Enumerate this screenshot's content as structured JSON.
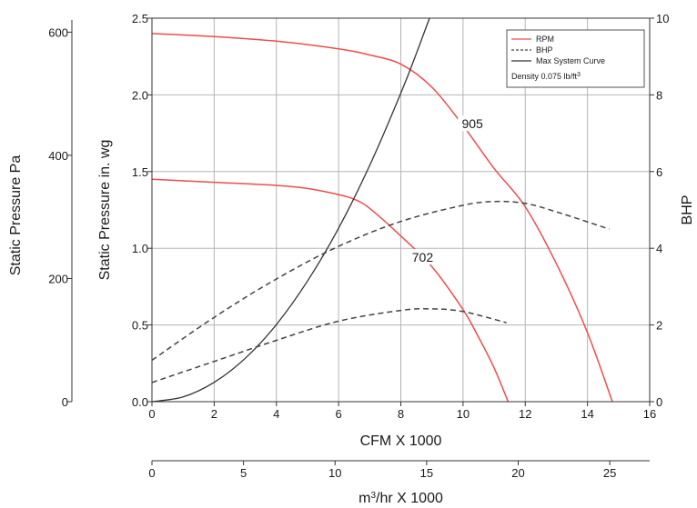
{
  "chart_data": {
    "type": "line",
    "title": "",
    "x_axis": {
      "label": "CFM X 1000",
      "range": [
        0,
        16
      ],
      "ticks": [
        "0",
        "2",
        "4",
        "6",
        "8",
        "10",
        "12",
        "14",
        "16"
      ]
    },
    "x2_axis": {
      "label": "m³/hr X 1000",
      "range": [
        0,
        27.18
      ],
      "ticks": [
        "0",
        "5",
        "10",
        "15",
        "20",
        "25"
      ]
    },
    "y_axis": {
      "label": "Static Pressure in. wg",
      "range": [
        0,
        2.5
      ],
      "ticks": [
        "0.0",
        "0.5",
        "1.0",
        "1.5",
        "2.0",
        "2.5"
      ]
    },
    "y_left_outer_axis": {
      "label": "Static Pressure Pa",
      "range": [
        0,
        622.7
      ],
      "ticks": [
        "0",
        "200",
        "400",
        "600"
      ]
    },
    "y_right_axis": {
      "label": "BHP",
      "range": [
        0,
        10
      ],
      "ticks": [
        "0",
        "2",
        "4",
        "6",
        "8",
        "10"
      ]
    },
    "grid": true,
    "legend": {
      "placement": "top-right",
      "entries": [
        {
          "label": "RPM",
          "style": "solid",
          "color": "#ef4c4c"
        },
        {
          "label": "BHP",
          "style": "dashed",
          "color": "#444444"
        },
        {
          "label": "Max System Curve",
          "style": "solid",
          "color": "#333333"
        }
      ],
      "note_prefix": "Density 0.075 lb/ft",
      "note_superscript": "3"
    },
    "series": [
      {
        "name": "905",
        "kind": "RPM",
        "axis": "y",
        "color": "#ef4c4c",
        "x": [
          0,
          2,
          4,
          6,
          7,
          8,
          9,
          10,
          11,
          12,
          13,
          14,
          14.8
        ],
        "y": [
          2.4,
          2.38,
          2.35,
          2.3,
          2.26,
          2.2,
          2.05,
          1.8,
          1.52,
          1.27,
          0.9,
          0.45,
          0
        ]
      },
      {
        "name": "702",
        "kind": "RPM",
        "axis": "y",
        "color": "#ef4c4c",
        "x": [
          0,
          2,
          4,
          5,
          6,
          6.5,
          7,
          8,
          9,
          10,
          10.5,
          11,
          11.45
        ],
        "y": [
          1.45,
          1.43,
          1.41,
          1.39,
          1.35,
          1.32,
          1.26,
          1.08,
          0.88,
          0.6,
          0.42,
          0.22,
          0
        ]
      },
      {
        "name": "",
        "kind": "BHP",
        "axis": "y_right",
        "color": "#444444",
        "x": [
          0,
          2,
          4,
          6,
          8,
          10,
          11,
          12,
          13,
          14.7
        ],
        "y": [
          1.08,
          2.2,
          3.2,
          4.05,
          4.7,
          5.12,
          5.22,
          5.17,
          4.95,
          4.5
        ]
      },
      {
        "name": "",
        "kind": "BHP",
        "axis": "y_right",
        "color": "#444444",
        "x": [
          0,
          2,
          4,
          6,
          8,
          9,
          10,
          11.4
        ],
        "y": [
          0.5,
          1.05,
          1.6,
          2.1,
          2.38,
          2.42,
          2.35,
          2.06
        ]
      },
      {
        "name": "",
        "kind": "Max System Curve",
        "axis": "y",
        "color": "#333333",
        "x": [
          0,
          1,
          2,
          3,
          4,
          5,
          6,
          7,
          8,
          8.5,
          8.92
        ],
        "y": [
          0,
          0.031,
          0.126,
          0.283,
          0.503,
          0.786,
          1.131,
          1.54,
          2.011,
          2.27,
          2.5
        ]
      }
    ],
    "annotations": [
      {
        "text": "905",
        "x": 10.3,
        "y": 1.8
      },
      {
        "text": "702",
        "x": 8.7,
        "y": 0.93
      }
    ]
  }
}
